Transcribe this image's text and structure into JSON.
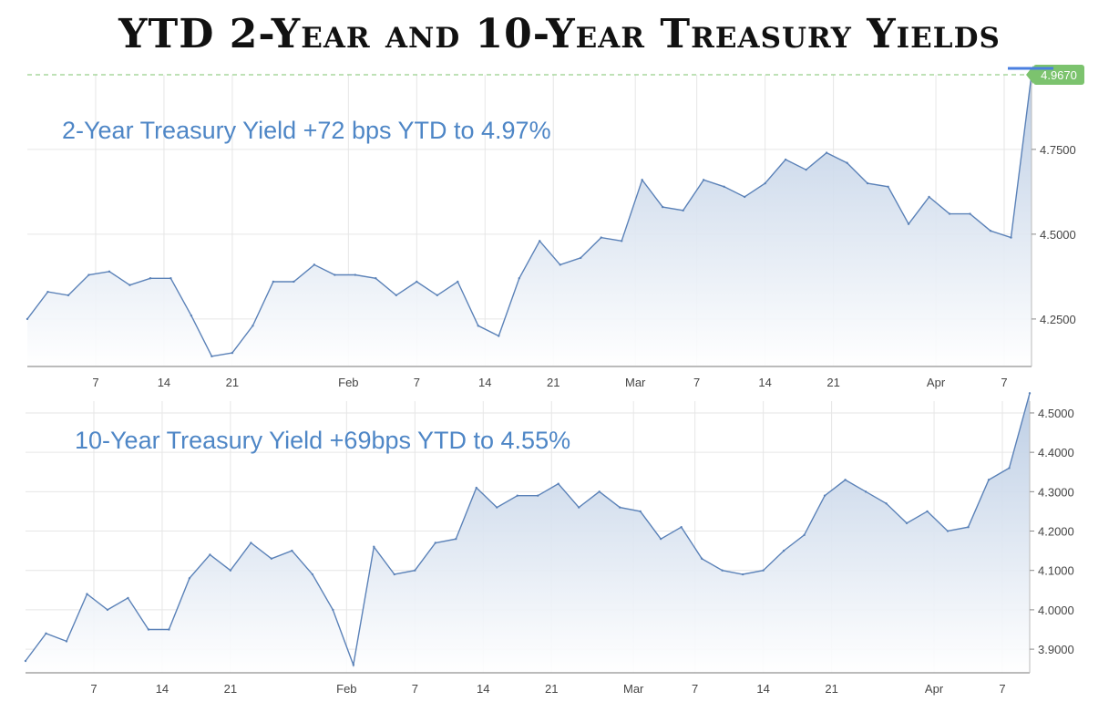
{
  "title": "YTD 2-Year and 10-Year Treasury Yields",
  "colors": {
    "line": "#5b82b8",
    "fill_top": "#b9cbe3",
    "fill_bottom": "#ffffff",
    "annotation": "#4e86c6",
    "last_badge": "#7cc36e",
    "grid": "#e6e6e6"
  },
  "chart_data": [
    {
      "type": "area",
      "annotation": "2-Year Treasury Yield +72 bps YTD to 4.97%",
      "last_value_label": "4.9670",
      "ylim": [
        4.11,
        4.97
      ],
      "yticks": [
        "4.2500",
        "4.5000",
        "4.7500"
      ],
      "ytick_values": [
        4.25,
        4.5,
        4.75
      ],
      "xticks": [
        "7",
        "14",
        "21",
        "Feb",
        "7",
        "14",
        "21",
        "Mar",
        "7",
        "14",
        "21",
        "Apr",
        "7"
      ],
      "xtick_index": [
        10,
        20,
        30,
        47,
        57,
        67,
        77,
        89,
        98,
        108,
        118,
        133,
        143
      ],
      "x": [
        0,
        3,
        6,
        9,
        12,
        15,
        18,
        21,
        24,
        27,
        30,
        33,
        36,
        39,
        42,
        45,
        48,
        51,
        54,
        57,
        60,
        63,
        66,
        69,
        72,
        75,
        78,
        81,
        84,
        87,
        90,
        93,
        96,
        99,
        102,
        105,
        108,
        111,
        114,
        117,
        120,
        123,
        126,
        129,
        132,
        135,
        138,
        141,
        144,
        147
      ],
      "values": [
        4.25,
        4.33,
        4.32,
        4.38,
        4.39,
        4.35,
        4.37,
        4.37,
        4.26,
        4.14,
        4.15,
        4.23,
        4.36,
        4.36,
        4.41,
        4.38,
        4.38,
        4.37,
        4.32,
        4.36,
        4.32,
        4.36,
        4.23,
        4.2,
        4.37,
        4.48,
        4.41,
        4.43,
        4.49,
        4.48,
        4.66,
        4.58,
        4.57,
        4.66,
        4.64,
        4.61,
        4.65,
        4.72,
        4.69,
        4.74,
        4.71,
        4.65,
        4.64,
        4.53,
        4.61,
        4.56,
        4.56,
        4.51,
        4.49,
        4.97
      ]
    },
    {
      "type": "area",
      "annotation": "10-Year Treasury Yield +69bps YTD to 4.55%",
      "ylim": [
        3.84,
        4.53
      ],
      "yticks": [
        "3.9000",
        "4.0000",
        "4.1000",
        "4.2000",
        "4.3000",
        "4.4000",
        "4.5000"
      ],
      "ytick_values": [
        3.9,
        4.0,
        4.1,
        4.2,
        4.3,
        4.4,
        4.5
      ],
      "xticks": [
        "7",
        "14",
        "21",
        "Feb",
        "7",
        "14",
        "21",
        "Mar",
        "7",
        "14",
        "21",
        "Apr",
        "7"
      ],
      "xtick_index": [
        10,
        20,
        30,
        47,
        57,
        67,
        77,
        89,
        98,
        108,
        118,
        133,
        143
      ],
      "x": [
        0,
        3,
        6,
        9,
        12,
        15,
        18,
        21,
        24,
        27,
        30,
        33,
        36,
        39,
        42,
        45,
        48,
        51,
        54,
        57,
        60,
        63,
        66,
        69,
        72,
        75,
        78,
        81,
        84,
        87,
        90,
        93,
        96,
        99,
        102,
        105,
        108,
        111,
        114,
        117,
        120,
        123,
        126,
        129,
        132,
        135,
        138,
        141,
        144,
        147
      ],
      "values": [
        3.87,
        3.94,
        3.92,
        4.04,
        4.0,
        4.03,
        3.95,
        3.95,
        4.08,
        4.14,
        4.1,
        4.17,
        4.13,
        4.15,
        4.09,
        4.0,
        3.86,
        4.16,
        4.09,
        4.1,
        4.17,
        4.18,
        4.31,
        4.26,
        4.29,
        4.29,
        4.32,
        4.26,
        4.3,
        4.26,
        4.25,
        4.18,
        4.21,
        4.13,
        4.1,
        4.09,
        4.1,
        4.15,
        4.19,
        4.29,
        4.33,
        4.3,
        4.27,
        4.22,
        4.25,
        4.2,
        4.21,
        4.33,
        4.36,
        4.55
      ]
    }
  ]
}
